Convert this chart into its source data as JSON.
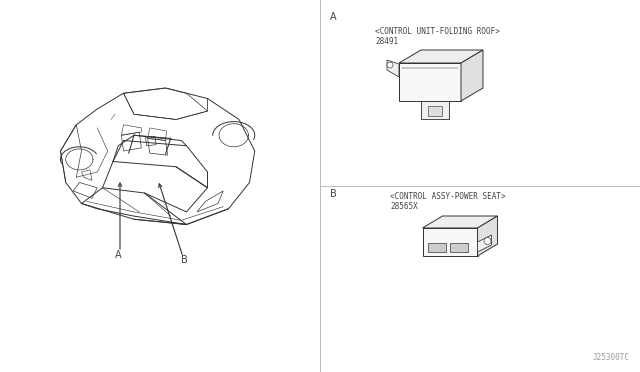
{
  "bg_color": "#ffffff",
  "line_color": "#333333",
  "text_color": "#444444",
  "part_A_number": "28565X",
  "part_A_name": "<CONTROL ASSY-POWER SEAT>",
  "part_B_number": "28491",
  "part_B_name": "<CONTROL UNIT-FOLDING ROOF>",
  "watermark": "J25300TC",
  "label_A": "A",
  "label_B": "B",
  "font_size_label": 7,
  "font_size_part": 5.5,
  "font_size_watermark": 5.5
}
